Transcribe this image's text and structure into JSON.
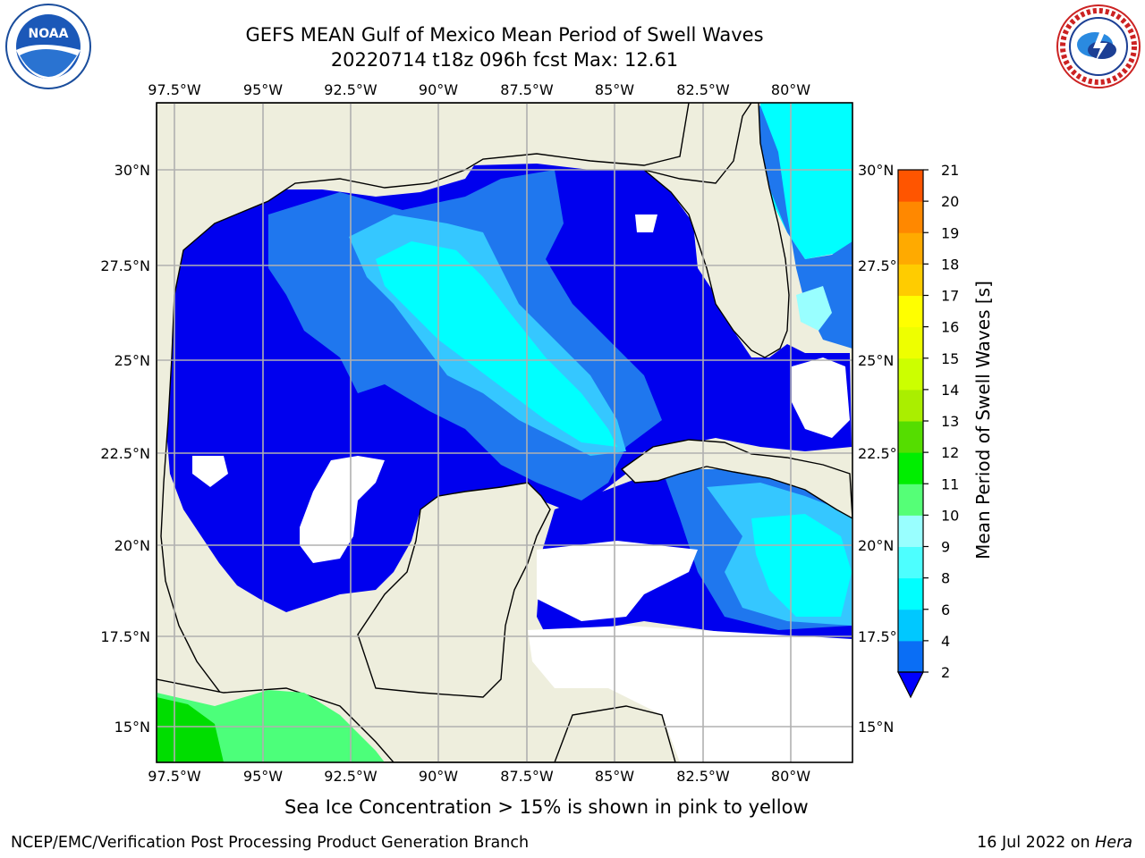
{
  "header": {
    "title_line1": "GEFS MEAN Gulf of Mexico Mean Period of Swell Waves",
    "title_line2": "20220714 t18z 096h fcst   Max: 12.61"
  },
  "logos": {
    "left": "NOAA",
    "left_ring": "NATIONAL OCEANIC AND ATMOSPHERIC ADMINISTRATION · U.S. DEPARTMENT OF COMMERCE",
    "right_ring": "NATIONAL WEATHER SERVICE"
  },
  "map": {
    "lon_labels": [
      "97.5°W",
      "95°W",
      "92.5°W",
      "90°W",
      "87.5°W",
      "85°W",
      "82.5°W",
      "80°W"
    ],
    "lat_labels": [
      "30°N",
      "27.5°N",
      "25°N",
      "22.5°N",
      "20°N",
      "17.5°N",
      "15°N"
    ],
    "lat_labels_right": [
      "30°N",
      "27.5°N",
      "25°N",
      "22.5°N",
      "20°N",
      "17.5°N",
      "15°N"
    ],
    "colors": {
      "land": "#eeeedd",
      "ocean_blue": "#0000ee",
      "mid_blue": "#1f77ee",
      "light_blue": "#4fc3f7",
      "cyan": "#00ffff",
      "green": "#4cff4c",
      "deep_green": "#00cc00",
      "gridline": "#b0b0b0"
    }
  },
  "colorbar": {
    "label": "Mean Period of Swell Waves [s]",
    "ticks": [
      "2",
      "4",
      "6",
      "8",
      "9",
      "10",
      "11",
      "12",
      "13",
      "14",
      "15",
      "16",
      "17",
      "18",
      "19",
      "20",
      "21"
    ],
    "colors": [
      "#0a6ef5",
      "#00c8ff",
      "#00ffff",
      "#4dffff",
      "#99ffff",
      "#55ff77",
      "#00ee00",
      "#55dd00",
      "#aaee00",
      "#ccff00",
      "#eeff00",
      "#ffff00",
      "#ffcc00",
      "#ffaa00",
      "#ff8800",
      "#ff5500",
      "#ff2200",
      "#ff0000"
    ],
    "extend_color": "#0000ff"
  },
  "footer": {
    "note": "Sea Ice Concentration > 15% is shown in pink to yellow",
    "credit_left": "NCEP/EMC/Verification Post Processing Product Generation Branch",
    "credit_right_date": "16 Jul 2022 on ",
    "credit_right_host": "Hera"
  }
}
